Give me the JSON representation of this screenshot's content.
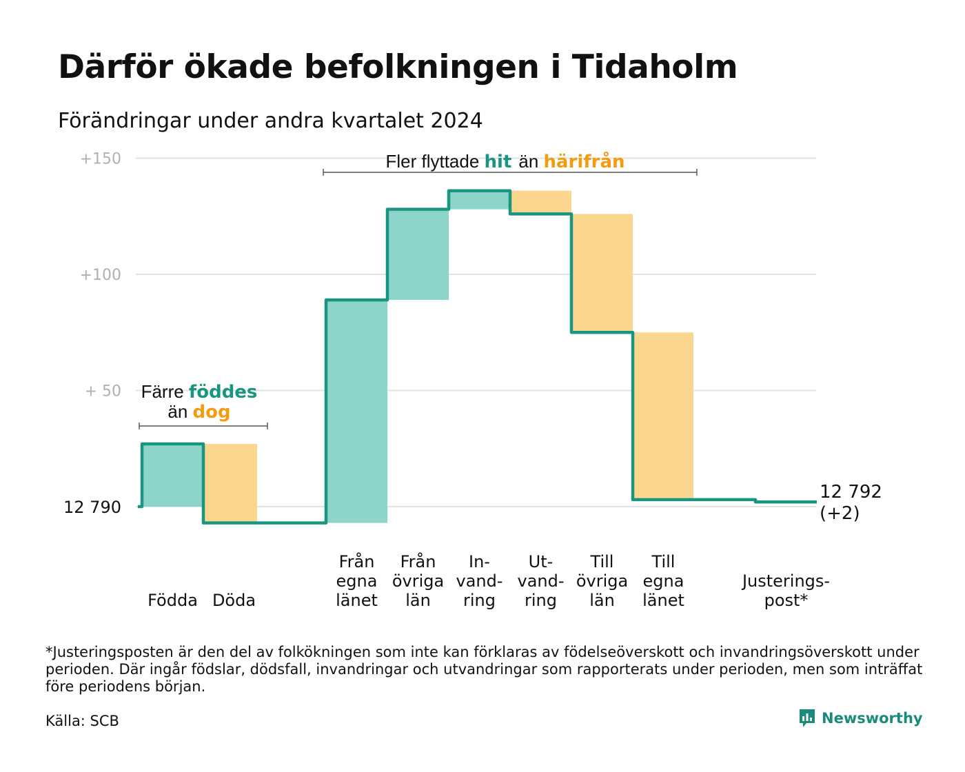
{
  "title": "Därför ökade befolkningen i Tidaholm",
  "subtitle": "Förändringar under andra kvartalet 2024",
  "colors": {
    "inflow": "#8dd5cb",
    "outflow": "#fbd68e",
    "line": "#1a9582",
    "grid": "#e3e3e3",
    "accent_hit": "#1a9582",
    "accent_harifran": "#f39c12"
  },
  "chart_data": {
    "type": "bar",
    "subtype": "waterfall",
    "baseline": 12790,
    "baseline_label": "12  790",
    "ylim": [
      -10,
      150
    ],
    "yticks": [
      {
        "value": 150,
        "label": "+150"
      },
      {
        "value": 100,
        "label": "+100"
      },
      {
        "value": 50,
        "label": "+  50"
      }
    ],
    "steps": [
      {
        "label": [
          "Födda"
        ],
        "change": 27,
        "kind": "in"
      },
      {
        "label": [
          "Döda"
        ],
        "change": -34,
        "kind": "out"
      },
      {
        "label": [],
        "change": 0,
        "kind": "gap"
      },
      {
        "label": [
          "Från",
          "egna",
          "länet"
        ],
        "change": 96,
        "kind": "in"
      },
      {
        "label": [
          "Från",
          "övriga",
          "län"
        ],
        "change": 39,
        "kind": "in"
      },
      {
        "label": [
          "In-",
          "vand-",
          "ring"
        ],
        "change": 8,
        "kind": "in"
      },
      {
        "label": [
          "Ut-",
          "vand-",
          "ring"
        ],
        "change": -10,
        "kind": "out"
      },
      {
        "label": [
          "Till",
          "övriga",
          "län"
        ],
        "change": -51,
        "kind": "out"
      },
      {
        "label": [
          "Till",
          "egna",
          "länet"
        ],
        "change": -72,
        "kind": "out"
      },
      {
        "label": [],
        "change": 0,
        "kind": "gap"
      },
      {
        "label": [
          "Justerings-",
          "post*"
        ],
        "change": -1,
        "kind": "adjust"
      }
    ],
    "end_value_label": "12 792",
    "end_change_label": "(+2)",
    "annotations": [
      {
        "line1_prefix": "Färre ",
        "line1_highlight": "föddes",
        "line2_prefix": "än ",
        "line2_highlight": "dog"
      },
      {
        "prefix": "Fler flyttade ",
        "highlight1": "hit",
        "middle": "än ",
        "highlight2": "härifrån"
      }
    ]
  },
  "footnote": "*Justeringsposten är den del av folkökningen som inte kan förklaras av födelseöverskott och invandringsöverskott under perioden. Där ingår födslar, dödsfall, invandringar och utvandringar som rapporterats under perioden, men som inträffat före periodens början.",
  "source": "Källa: SCB",
  "brand": {
    "name": "Newsworthy",
    "icon": "newsworthy-logo-icon"
  }
}
